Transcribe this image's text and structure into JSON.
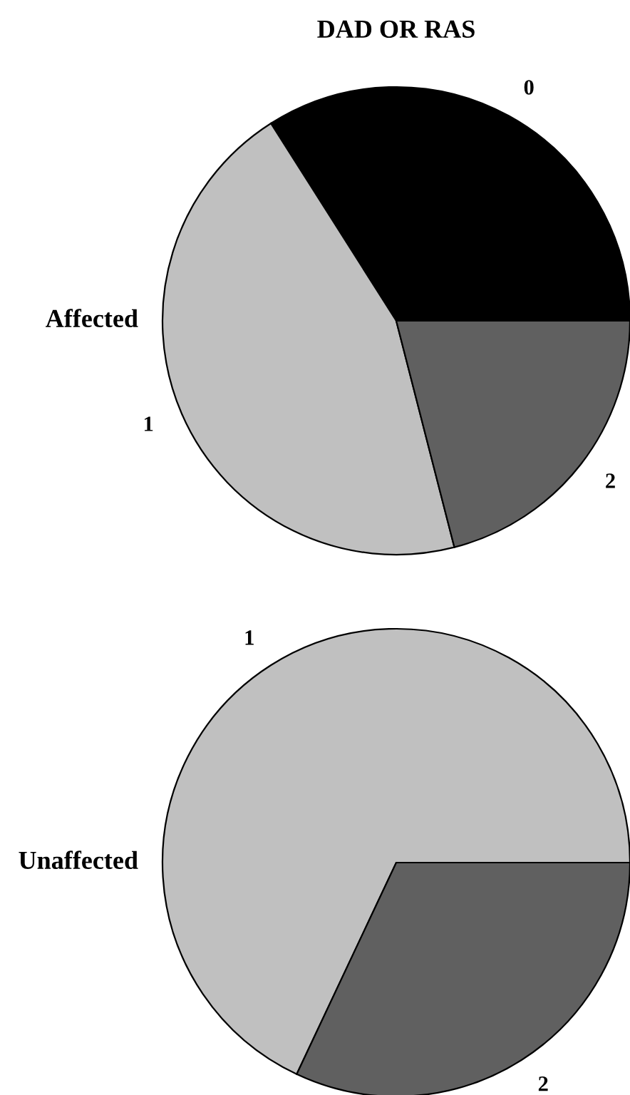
{
  "chart_data": [
    {
      "type": "pie",
      "title": "DAD OR RAS",
      "ylabel": "Affected",
      "categories": [
        "0",
        "1",
        "2"
      ],
      "values": [
        34,
        45,
        21
      ],
      "colors": [
        "#000000",
        "#c0c0c0",
        "#606060"
      ]
    },
    {
      "type": "pie",
      "ylabel": "Unaffected",
      "categories": [
        "1",
        "2"
      ],
      "values": [
        68,
        32
      ],
      "colors": [
        "#c0c0c0",
        "#606060"
      ]
    }
  ]
}
